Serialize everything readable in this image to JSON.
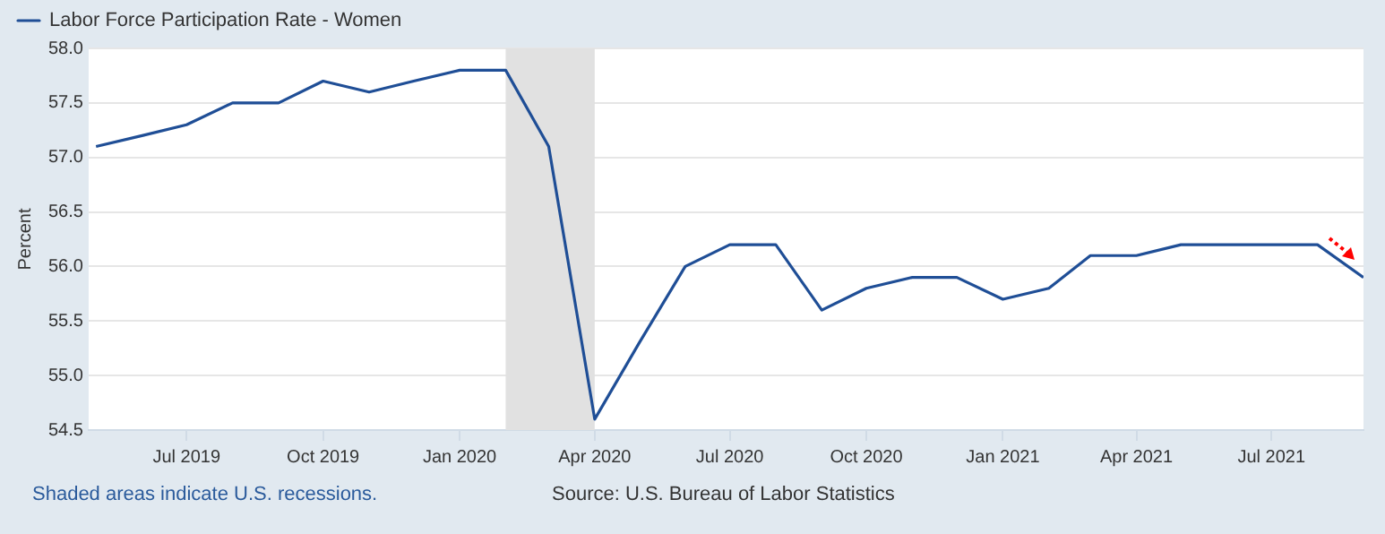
{
  "chart_data": {
    "type": "line",
    "ylabel": "Percent",
    "legend": "top left",
    "grid": "y",
    "marker": "none",
    "line_style": "solid",
    "x": [
      "2019-05",
      "2019-06",
      "2019-07",
      "2019-08",
      "2019-09",
      "2019-10",
      "2019-11",
      "2019-12",
      "2020-01",
      "2020-02",
      "2020-03",
      "2020-04",
      "2020-05",
      "2020-06",
      "2020-07",
      "2020-08",
      "2020-09",
      "2020-10",
      "2020-11",
      "2020-12",
      "2021-01",
      "2021-02",
      "2021-03",
      "2021-04",
      "2021-05",
      "2021-06",
      "2021-07",
      "2021-08",
      "2021-09"
    ],
    "series": [
      {
        "name": "Labor Force Participation Rate - Women",
        "color": "#1f4e96",
        "values": [
          57.1,
          57.2,
          57.3,
          57.5,
          57.5,
          57.7,
          57.6,
          57.7,
          57.8,
          57.8,
          57.1,
          54.6,
          55.3,
          56.0,
          56.2,
          56.2,
          55.6,
          55.8,
          55.9,
          55.9,
          55.7,
          55.8,
          56.1,
          56.1,
          56.2,
          56.2,
          56.2,
          56.2,
          55.9
        ]
      }
    ],
    "xlim": [
      "2019-04-26",
      "2021-09-01"
    ],
    "xticks": [
      {
        "value": "2019-07",
        "label": "Jul 2019"
      },
      {
        "value": "2019-10",
        "label": "Oct 2019"
      },
      {
        "value": "2020-01",
        "label": "Jan 2020"
      },
      {
        "value": "2020-04",
        "label": "Apr 2020"
      },
      {
        "value": "2020-07",
        "label": "Jul 2020"
      },
      {
        "value": "2020-10",
        "label": "Oct 2020"
      },
      {
        "value": "2021-01",
        "label": "Jan 2021"
      },
      {
        "value": "2021-04",
        "label": "Apr 2021"
      },
      {
        "value": "2021-07",
        "label": "Jul 2021"
      }
    ],
    "ylim": [
      54.5,
      58.0
    ],
    "yticks": [
      54.5,
      {
        "value": 55,
        "label": "55.0"
      },
      55.5,
      {
        "value": 56,
        "label": "56.0"
      },
      56.5,
      {
        "value": 57,
        "label": "57.0"
      },
      57.5,
      {
        "value": 58,
        "label": "58.0"
      }
    ],
    "bands": [
      {
        "axis": "x",
        "from": "2020-02",
        "to": "2020-04",
        "color": "#e1e1e1"
      }
    ],
    "annotations": [
      "Shaded areas indicate U.S. recessions.",
      "Source: U.S. Bureau of Labor Statistics"
    ]
  }
}
